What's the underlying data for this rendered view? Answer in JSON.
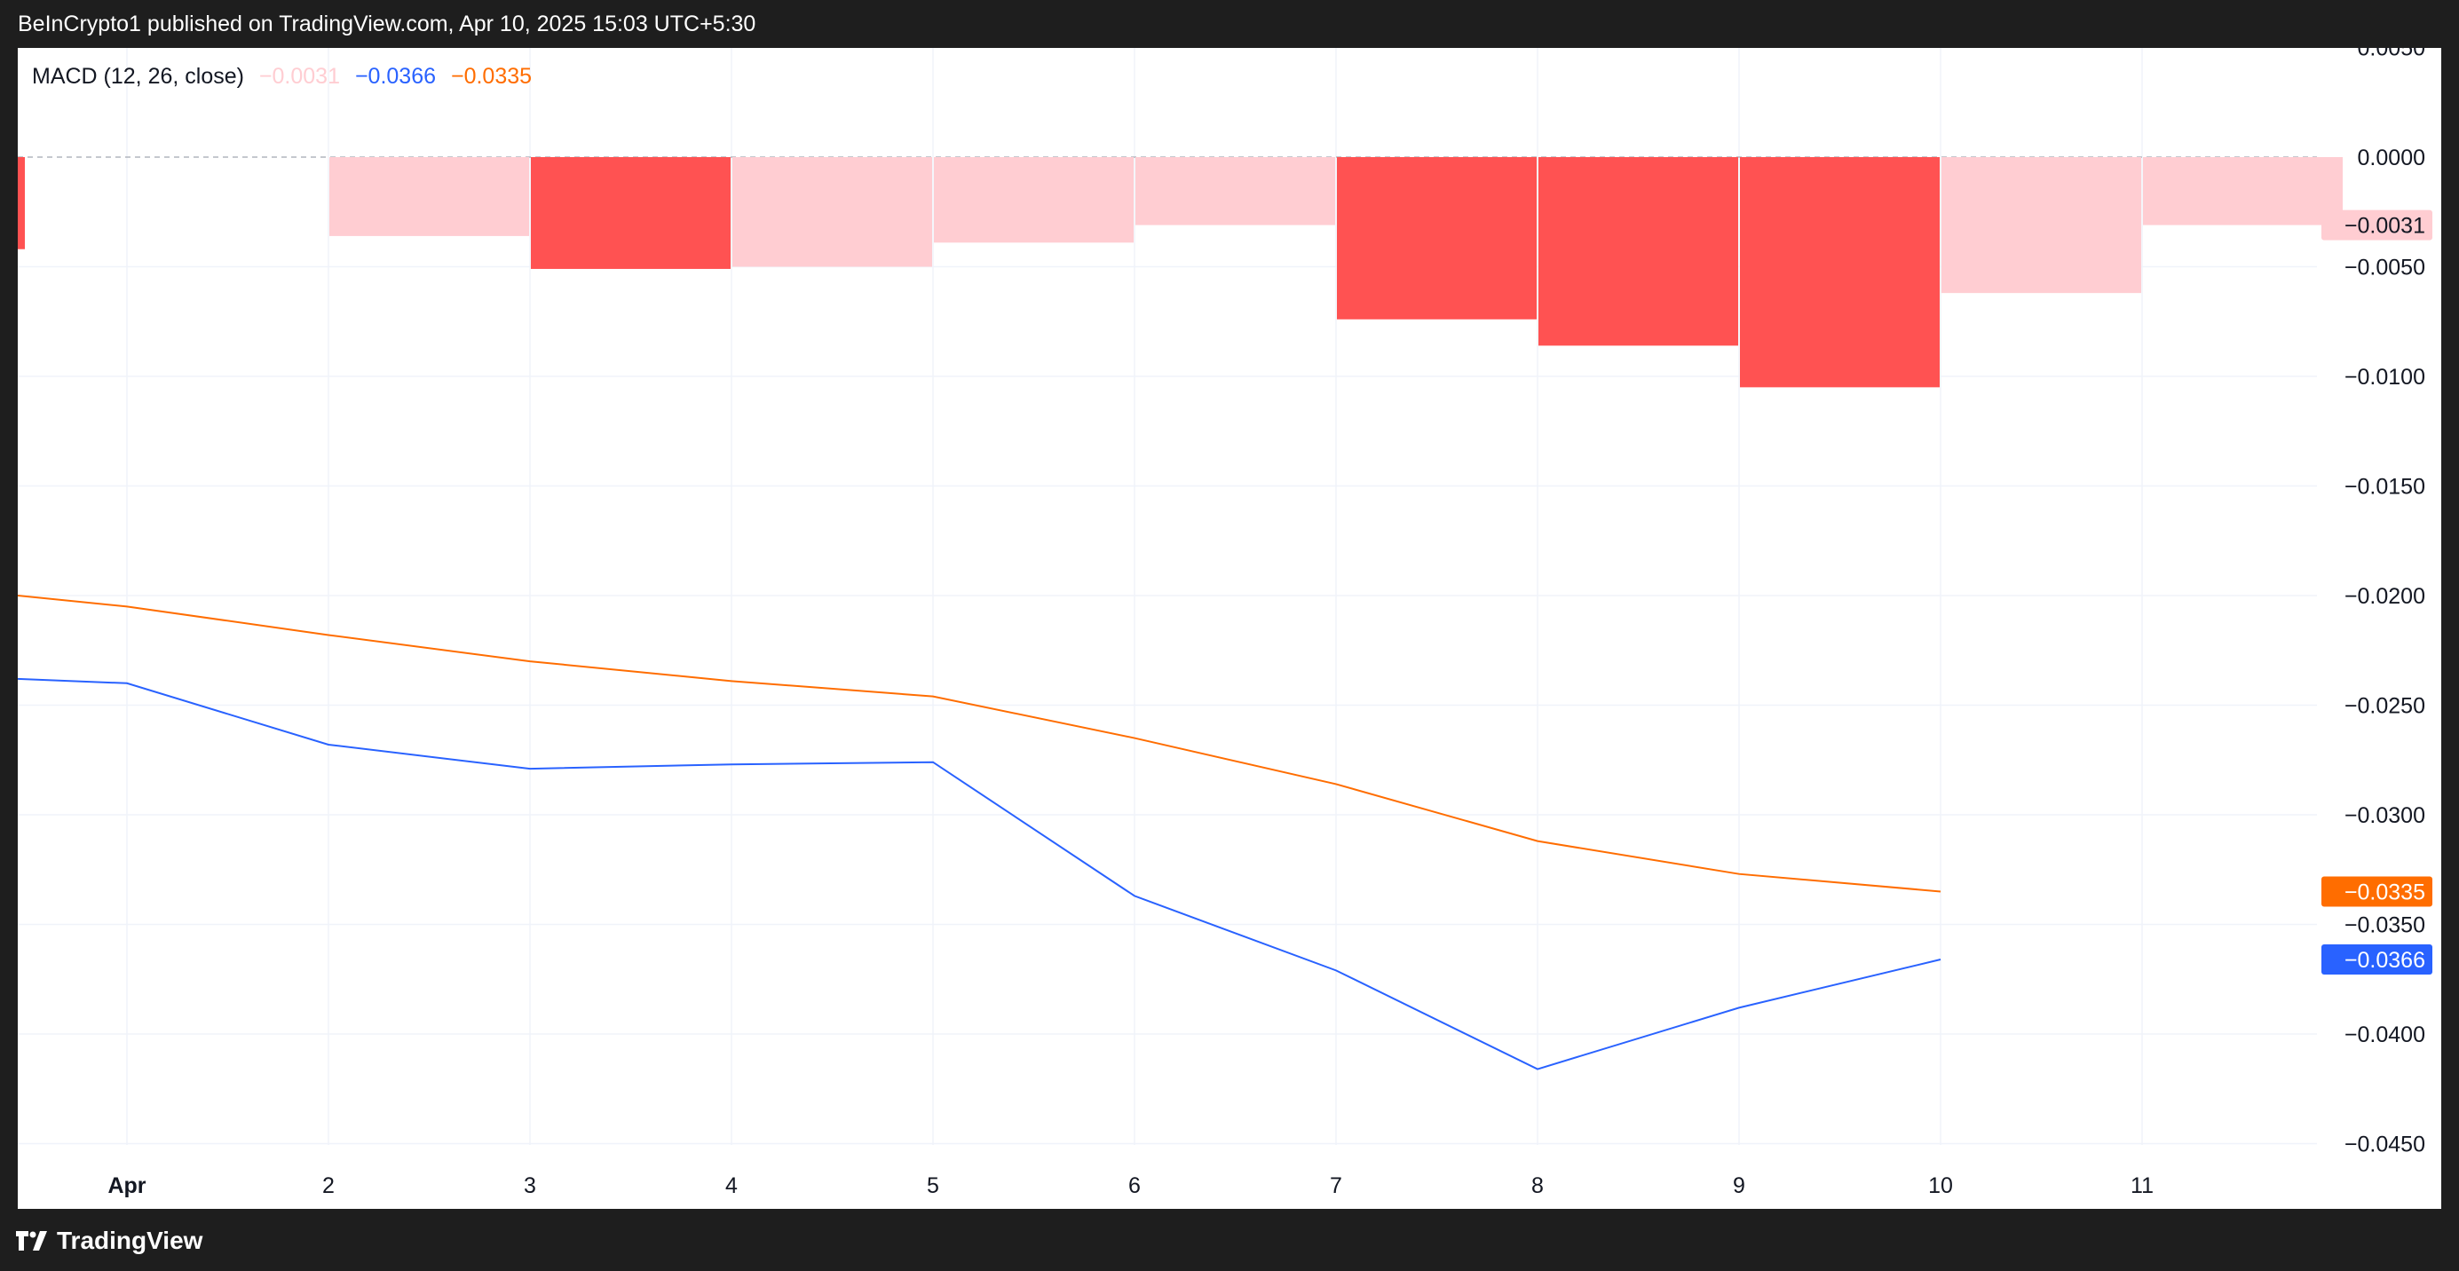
{
  "header": {
    "published_text": "BeInCrypto1 published on TradingView.com, Apr 10, 2025 15:03 UTC+5:30"
  },
  "footer": {
    "brand": "TradingView",
    "logo_icon": "tradingview-logo-icon"
  },
  "legend": {
    "title": "MACD (12, 26, close)",
    "histogram_value": "−0.0031",
    "macd_value": "−0.0366",
    "signal_value": "−0.0335"
  },
  "colors": {
    "histogram_dark": "#ff5252",
    "histogram_light": "#ffcdd2",
    "macd_line": "#2962ff",
    "signal_line": "#ff6d00",
    "grid": "#f0f3fa",
    "zero_line": "#b2b5be"
  },
  "chart_data": {
    "type": "line",
    "title": "",
    "xlabel": "",
    "ylabel": "",
    "ylim": [
      -0.045,
      0.005
    ],
    "grid": true,
    "x_ticks": [
      "Apr",
      "2",
      "3",
      "4",
      "5",
      "6",
      "7",
      "8",
      "9",
      "10",
      "11"
    ],
    "y_ticks": [
      "0.0050",
      "0.0000",
      "−0.0050",
      "−0.0100",
      "−0.0150",
      "−0.0200",
      "−0.0250",
      "−0.0300",
      "−0.0350",
      "−0.0400",
      "−0.0450"
    ],
    "y_tick_values": [
      0.005,
      0.0,
      -0.005,
      -0.01,
      -0.015,
      -0.02,
      -0.025,
      -0.03,
      -0.035,
      -0.04,
      -0.045
    ],
    "histogram": {
      "name": "Histogram",
      "x": [
        0,
        1,
        2,
        3,
        4,
        5,
        6,
        7,
        8,
        9,
        10
      ],
      "values": [
        -0.0042,
        -0.0036,
        -0.0051,
        -0.005,
        -0.0039,
        -0.0031,
        -0.0074,
        -0.0086,
        -0.0105,
        -0.0062,
        -0.0031
      ],
      "shade": [
        "dark",
        "light",
        "dark",
        "light",
        "light",
        "light",
        "dark",
        "dark",
        "dark",
        "light",
        "light"
      ]
    },
    "series": [
      {
        "name": "MACD",
        "color": "#2962ff",
        "x": [
          -0.5,
          0,
          1,
          2,
          3,
          4,
          5,
          6,
          7,
          8,
          9
        ],
        "values": [
          -0.0238,
          -0.024,
          -0.0268,
          -0.0279,
          -0.0277,
          -0.0276,
          -0.0337,
          -0.0371,
          -0.0416,
          -0.0388,
          -0.0366
        ]
      },
      {
        "name": "Signal",
        "color": "#ff6d00",
        "x": [
          -0.5,
          0,
          1,
          2,
          3,
          4,
          5,
          6,
          7,
          8,
          9
        ],
        "values": [
          -0.02,
          -0.0205,
          -0.0218,
          -0.023,
          -0.0239,
          -0.0246,
          -0.0265,
          -0.0286,
          -0.0312,
          -0.0327,
          -0.0335
        ]
      }
    ],
    "price_badges": [
      {
        "label": "−0.0031",
        "value": -0.0031,
        "bg": "#ffcdd2",
        "fg": "#131722"
      },
      {
        "label": "−0.0335",
        "value": -0.0335,
        "bg": "#ff6d00",
        "fg": "#ffffff"
      },
      {
        "label": "−0.0366",
        "value": -0.0366,
        "bg": "#2962ff",
        "fg": "#ffffff"
      }
    ]
  }
}
